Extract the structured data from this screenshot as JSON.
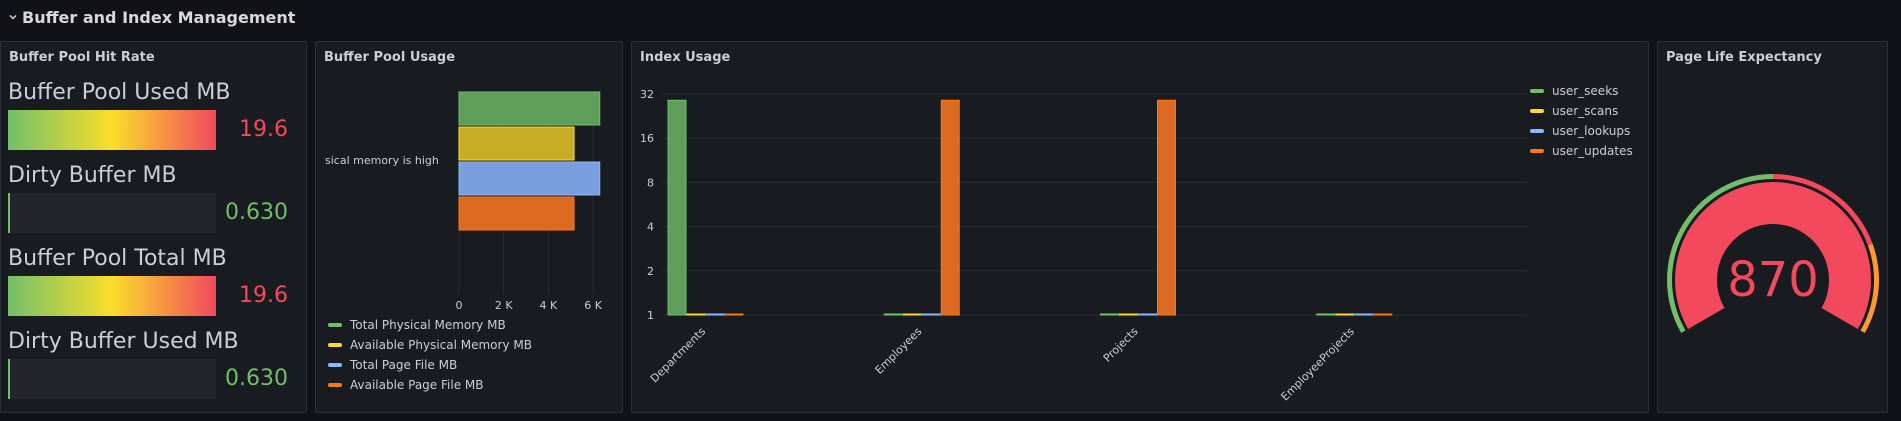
{
  "row": {
    "title": "Buffer and Index Management"
  },
  "colors": {
    "green": "#73bf69",
    "yellow": "#fade2a",
    "blue": "#8ab8ff",
    "orange": "#ff780a",
    "red": "#f2495c",
    "bar_green": "#5e9e5a",
    "bar_yellow": "#c7ac25",
    "bar_blue": "#7b9edc",
    "bar_orange": "#dd6a22"
  },
  "hit_rate": {
    "title": "Buffer Pool Hit Rate",
    "items": [
      {
        "label": "Buffer Pool Used MB",
        "value": "19.6",
        "fill": 1.0,
        "style": "grad",
        "color": "#f2495c"
      },
      {
        "label": "Dirty Buffer MB",
        "value": "0.630",
        "fill": 0.01,
        "style": "green",
        "color": "#73bf69"
      },
      {
        "label": "Buffer Pool Total MB",
        "value": "19.6",
        "fill": 1.0,
        "style": "grad",
        "color": "#f2495c"
      },
      {
        "label": "Dirty Buffer Used MB",
        "value": "0.630",
        "fill": 0.01,
        "style": "green",
        "color": "#73bf69"
      }
    ]
  },
  "pool_usage": {
    "title": "Buffer Pool Usage",
    "chart_data": {
      "type": "bar",
      "orientation": "horizontal",
      "categories": [
        "sical memory is high"
      ],
      "series": [
        {
          "name": "Total Physical Memory MB",
          "values": [
            6300
          ]
        },
        {
          "name": "Available Physical Memory MB",
          "values": [
            5150
          ]
        },
        {
          "name": "Total Page File MB",
          "values": [
            6300
          ]
        },
        {
          "name": "Available Page File MB",
          "values": [
            5150
          ]
        }
      ],
      "xlim": [
        0,
        6400
      ],
      "x_ticks": [
        "0",
        "2 K",
        "4 K",
        "6 K"
      ],
      "legend_position": "bottom"
    }
  },
  "index_usage": {
    "title": "Index Usage",
    "chart_data": {
      "type": "bar",
      "scale": "log2",
      "categories": [
        "Departments",
        "Employees",
        "Projects",
        "EmployeeProjects"
      ],
      "series": [
        {
          "name": "user_seeks",
          "values": [
            29,
            1,
            1,
            1
          ]
        },
        {
          "name": "user_scans",
          "values": [
            1,
            1,
            1,
            1
          ]
        },
        {
          "name": "user_lookups",
          "values": [
            1,
            1,
            1,
            1
          ]
        },
        {
          "name": "user_updates",
          "values": [
            1,
            29,
            29,
            1
          ]
        }
      ],
      "ylim": [
        1,
        32
      ],
      "y_ticks": [
        "1",
        "2",
        "4",
        "8",
        "16",
        "32"
      ],
      "legend_position": "top-right"
    }
  },
  "ple": {
    "title": "Page Life Expectancy",
    "value": "870",
    "value_color": "#f2495c",
    "gauge_fill": 1.0
  }
}
